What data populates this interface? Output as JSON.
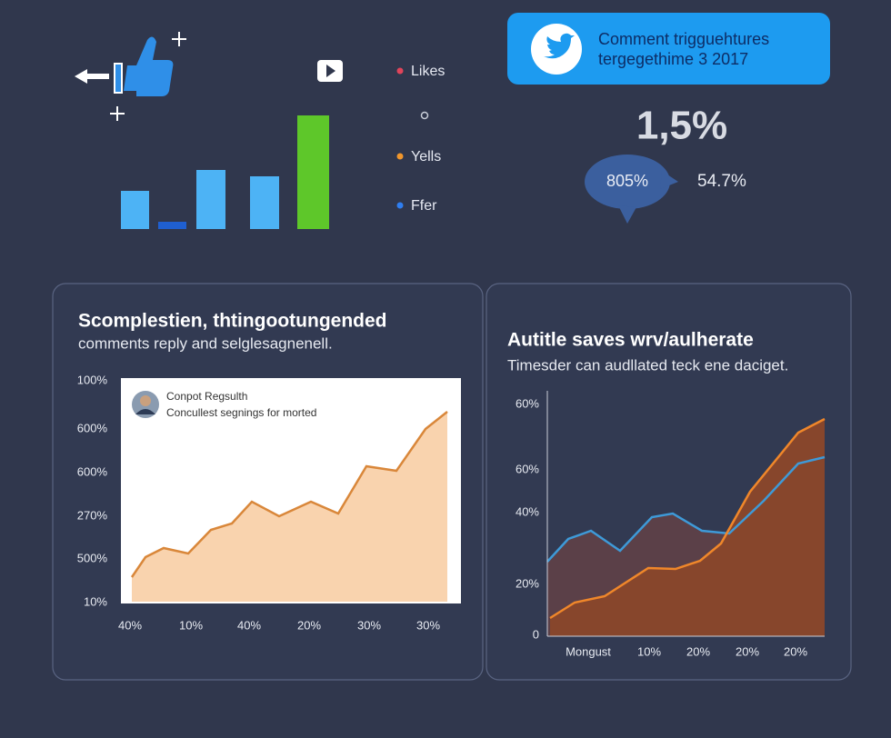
{
  "legend": {
    "items": [
      "Likes",
      "Yells",
      "Ffer"
    ]
  },
  "tweet_card": {
    "lines": [
      "Comment trigguehtures",
      "tergegethime 3 2017"
    ]
  },
  "stats": {
    "headline": "1,5%",
    "bubble": "805%",
    "side": "54.7%"
  },
  "panels": [
    {
      "title": "Scomplestien, thtingootungended",
      "subtitle": "comments reply and selglesagnenell.",
      "card_title": "Conpot Regsulth",
      "card_text": "Concullest segnings for morted",
      "y_labels": [
        "100%",
        "600%",
        "600%",
        "270%",
        "500%",
        "10%"
      ],
      "x_labels": [
        "40%",
        "10%",
        "40%",
        "20%",
        "30%",
        "30%"
      ]
    },
    {
      "title": "Autitle saves wrv/aulherate",
      "subtitle": "Timesder can audllated teck ene daciget.",
      "y_labels": [
        "60%",
        "60%",
        "40%",
        "20%",
        "0"
      ],
      "x_labels": [
        "Mongust",
        "10%",
        "20%",
        "20%",
        "20%"
      ]
    }
  ]
}
